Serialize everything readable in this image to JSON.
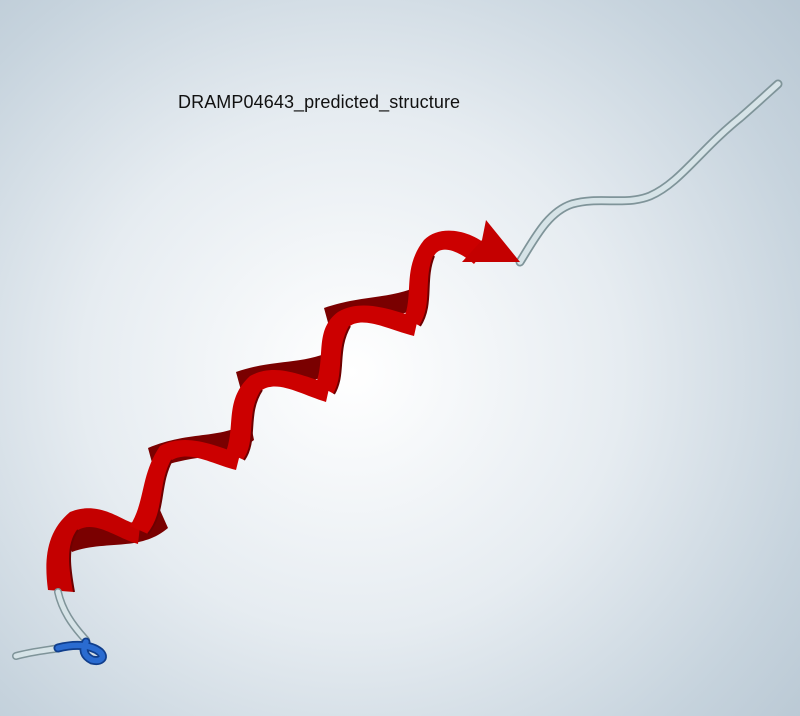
{
  "title": "DRAMP04643_predicted_structure",
  "colors": {
    "background": "#ffffff",
    "helix": "#c60000",
    "helix_shade": "#8a0000",
    "coil": "#c9d8dd",
    "n_terminus": "#1f5fc4"
  },
  "structure": {
    "type": "peptide",
    "secondary": [
      "coil",
      "helix",
      "coil"
    ],
    "helix_turns": 5
  }
}
